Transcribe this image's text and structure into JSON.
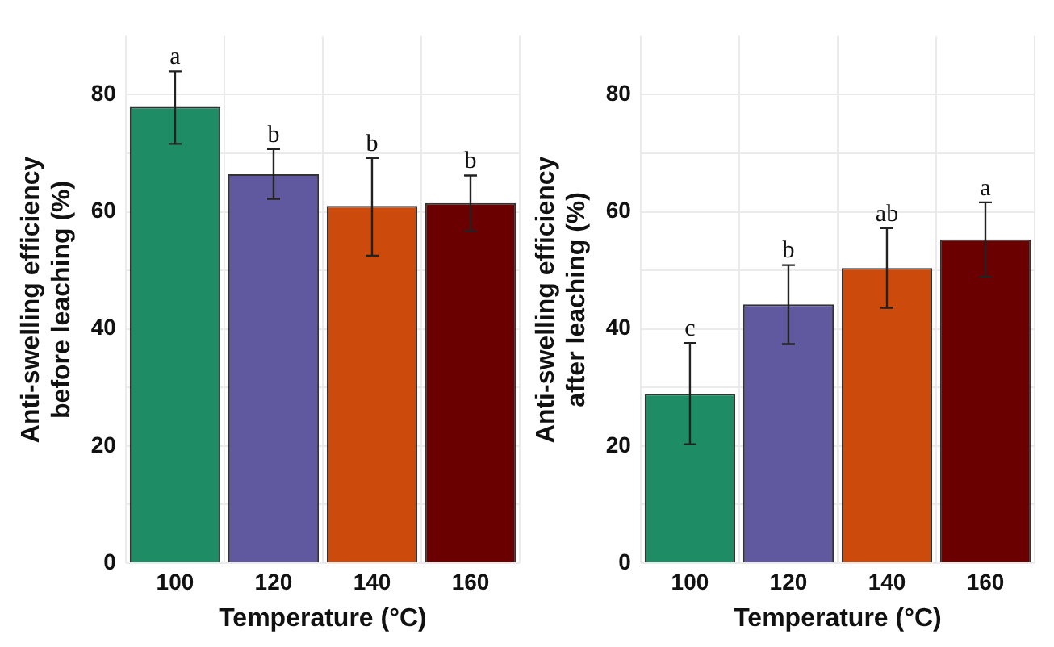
{
  "chart_data": [
    {
      "type": "bar",
      "xlabel": "Temperature (°C)",
      "ylabel": "Anti-swelling efficiency before leaching (%)",
      "categories": [
        "100",
        "120",
        "140",
        "160"
      ],
      "values": [
        77.9,
        66.4,
        61.0,
        61.5
      ],
      "colors": [
        "#1e8c64",
        "#6059a0",
        "#cc4a0c",
        "#6b0000"
      ],
      "errors": [
        [
          71.6,
          84.0
        ],
        [
          62.2,
          70.7
        ],
        [
          52.5,
          69.2
        ],
        [
          56.7,
          66.2
        ]
      ],
      "ylim": [
        0,
        90
      ],
      "yticks": [
        0,
        {
          "value": 10,
          "label": null
        },
        20,
        {
          "value": 30,
          "label": null
        },
        40,
        {
          "value": 50,
          "label": null
        },
        60,
        {
          "value": 70,
          "label": null
        },
        80
      ],
      "grid": true,
      "annotations": [
        {
          "text": "a",
          "x": "100",
          "y": 84.0
        },
        {
          "text": "b",
          "x": "120",
          "y": 70.7
        },
        {
          "text": "b",
          "x": "140",
          "y": 69.2
        },
        {
          "text": "b",
          "x": "160",
          "y": 66.2
        }
      ]
    },
    {
      "type": "bar",
      "xlabel": "Temperature (°C)",
      "ylabel": "Anti-swelling efficiency after leaching (%)",
      "categories": [
        "100",
        "120",
        "140",
        "160"
      ],
      "values": [
        28.9,
        44.2,
        50.4,
        55.3
      ],
      "colors": [
        "#1e8c64",
        "#6059a0",
        "#cc4a0c",
        "#6b0000"
      ],
      "errors": [
        [
          20.3,
          37.6
        ],
        [
          37.4,
          50.9
        ],
        [
          43.6,
          57.2
        ],
        [
          48.9,
          61.6
        ]
      ],
      "ylim": [
        0,
        90
      ],
      "yticks": [
        0,
        {
          "value": 10,
          "label": null
        },
        20,
        {
          "value": 30,
          "label": null
        },
        40,
        {
          "value": 50,
          "label": null
        },
        60,
        {
          "value": 70,
          "label": null
        },
        80
      ],
      "grid": true,
      "annotations": [
        {
          "text": "c",
          "x": "100",
          "y": 37.6
        },
        {
          "text": "b",
          "x": "120",
          "y": 50.9
        },
        {
          "text": "ab",
          "x": "140",
          "y": 57.2
        },
        {
          "text": "a",
          "x": "160",
          "y": 61.6
        }
      ]
    }
  ]
}
